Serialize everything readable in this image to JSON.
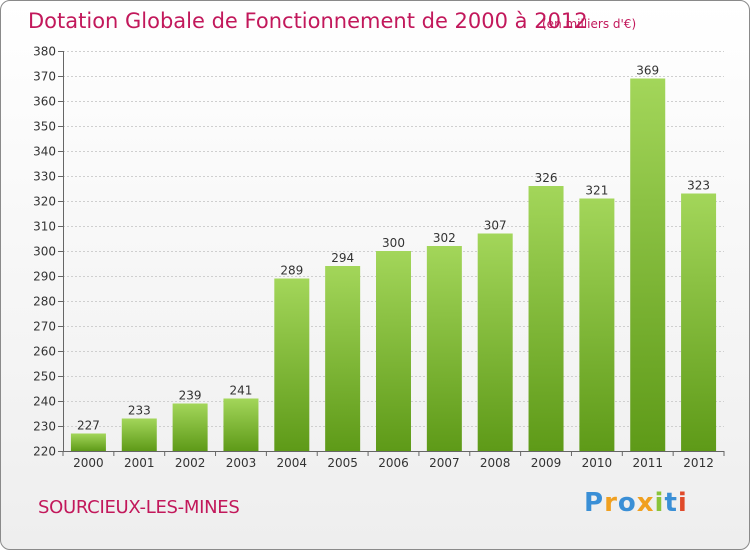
{
  "header": {
    "title": "Dotation Globale de Fonctionnement de 2000 à 2012",
    "unit": "(en milliers d'€)"
  },
  "footer": {
    "commune": "SOURCIEUX-LES-MINES",
    "brand": "Proxiti"
  },
  "colors": {
    "title": "#c2185b",
    "bar_top": "#a3d65a",
    "bar_bottom": "#5e9a18",
    "axis": "#666666",
    "grid": "#cfcfcf"
  },
  "brand_letters": [
    {
      "ch": "P",
      "color": "#3a8fd6"
    },
    {
      "ch": "r",
      "color": "#f0a020"
    },
    {
      "ch": "o",
      "color": "#3a8fd6"
    },
    {
      "ch": "x",
      "color": "#f0a020"
    },
    {
      "ch": "i",
      "color": "#8ac43a"
    },
    {
      "ch": "t",
      "color": "#3a8fd6"
    },
    {
      "ch": "i",
      "color": "#e04a2a"
    }
  ],
  "chart_data": {
    "type": "bar",
    "title": "Dotation Globale de Fonctionnement de 2000 à 2012",
    "subtitle": "(en milliers d'€)",
    "categories": [
      "2000",
      "2001",
      "2002",
      "2003",
      "2004",
      "2005",
      "2006",
      "2007",
      "2008",
      "2009",
      "2010",
      "2011",
      "2012"
    ],
    "values": [
      227,
      233,
      239,
      241,
      289,
      294,
      300,
      302,
      307,
      326,
      321,
      369,
      323
    ],
    "ylim": [
      220,
      380
    ],
    "yticks": [
      220,
      230,
      240,
      250,
      260,
      270,
      280,
      290,
      300,
      310,
      320,
      330,
      340,
      350,
      360,
      370,
      380
    ],
    "grid": true,
    "legend": "none"
  }
}
